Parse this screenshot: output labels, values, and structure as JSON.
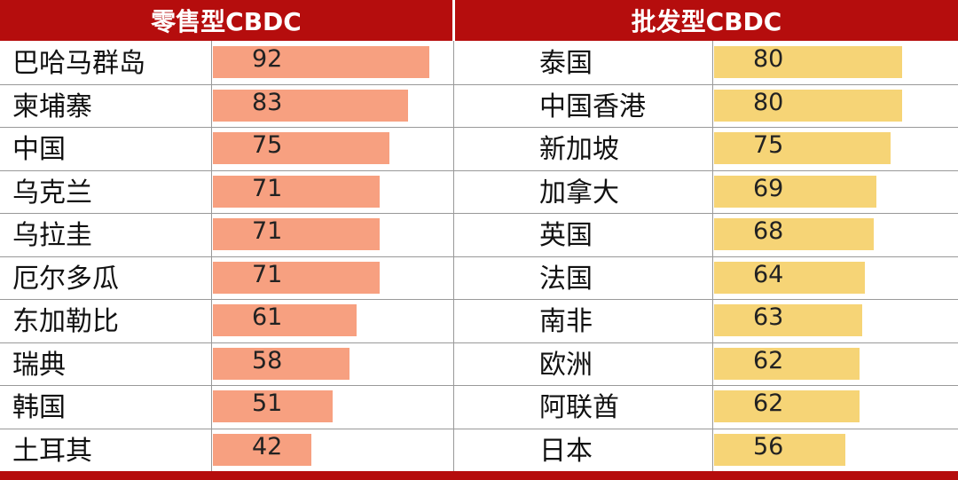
{
  "headers": {
    "left": "零售型CBDC",
    "right": "批发型CBDC"
  },
  "colors": {
    "header": "#b50d0d",
    "retail_bar": "#f7a080",
    "wholesale_bar": "#f6d476"
  },
  "chart_data": [
    {
      "type": "bar",
      "orientation": "horizontal",
      "title": "零售型CBDC",
      "categories": [
        "巴哈马群岛",
        "柬埔寨",
        "中国",
        "乌克兰",
        "乌拉圭",
        "厄尔多瓜",
        "东加勒比",
        "瑞典",
        "韩国",
        "土耳其"
      ],
      "values": [
        92,
        83,
        75,
        71,
        71,
        71,
        61,
        58,
        51,
        42
      ],
      "data_labels": [
        "92",
        "83",
        "75",
        "71",
        "71",
        "71",
        "61",
        "58",
        "51",
        "42"
      ],
      "xlim": [
        0,
        100
      ]
    },
    {
      "type": "bar",
      "orientation": "horizontal",
      "title": "批发型CBDC",
      "categories": [
        "泰国",
        "中国香港",
        "新加坡",
        "加拿大",
        "英国",
        "法国",
        "南非",
        "欧洲",
        "阿联酋",
        "日本"
      ],
      "values": [
        80,
        80,
        75,
        69,
        68,
        64,
        63,
        62,
        62,
        56
      ],
      "data_labels": [
        "80",
        "80",
        "75",
        "69",
        "68",
        "64",
        "63",
        "62",
        "62",
        "56"
      ],
      "xlim": [
        0,
        100
      ]
    }
  ]
}
